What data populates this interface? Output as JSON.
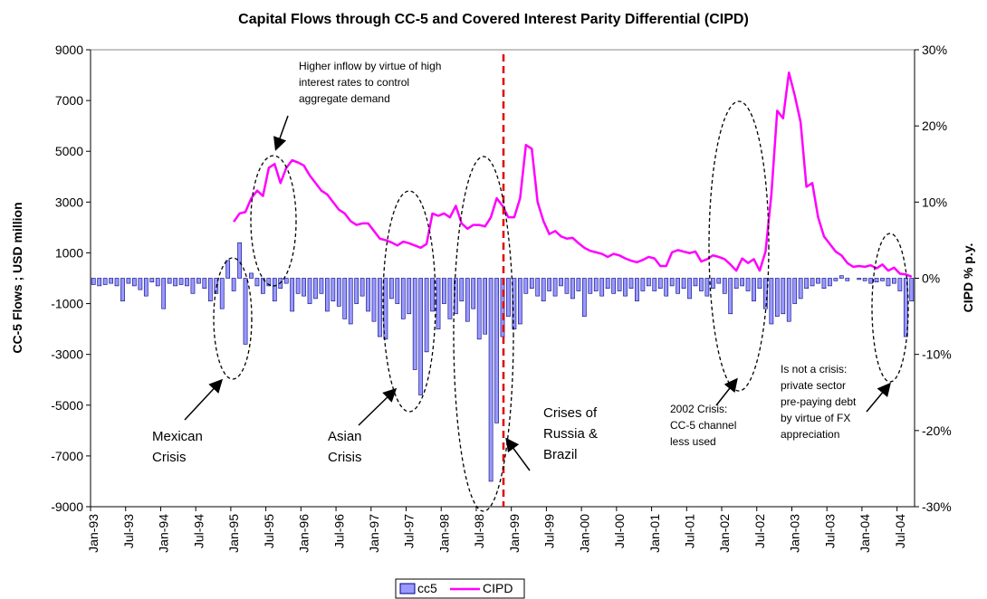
{
  "chart_data": {
    "type": "bar_line",
    "title": "Capital Flows through CC-5 and Covered Interest Parity Differential (CIPD)",
    "y_label": "CC-5 Flows ; USD million",
    "y2_label": "CIPD % p.y.",
    "categories": [
      "Jan-93",
      null,
      null,
      null,
      null,
      null,
      "Jul-93",
      null,
      null,
      null,
      null,
      null,
      "Jan-94",
      null,
      null,
      null,
      null,
      null,
      "Jul-94",
      null,
      null,
      null,
      null,
      null,
      "Jan-95",
      null,
      null,
      null,
      null,
      null,
      "Jul-95",
      null,
      null,
      null,
      null,
      null,
      "Jan-96",
      null,
      null,
      null,
      null,
      null,
      "Jul-96",
      null,
      null,
      null,
      null,
      null,
      "Jan-97",
      null,
      null,
      null,
      null,
      null,
      "Jul-97",
      null,
      null,
      null,
      null,
      null,
      "Jan-98",
      null,
      null,
      null,
      null,
      null,
      "Jul-98",
      null,
      null,
      null,
      null,
      null,
      "Jan-99",
      null,
      null,
      null,
      null,
      null,
      "Jul-99",
      null,
      null,
      null,
      null,
      null,
      "Jan-00",
      null,
      null,
      null,
      null,
      null,
      "Jul-00",
      null,
      null,
      null,
      null,
      null,
      "Jan-01",
      null,
      null,
      null,
      null,
      null,
      "Jul-01",
      null,
      null,
      null,
      null,
      null,
      "Jan-02",
      null,
      null,
      null,
      null,
      null,
      "Jul-02",
      null,
      null,
      null,
      null,
      null,
      "Jan-03",
      null,
      null,
      null,
      null,
      null,
      "Jul-03",
      null,
      null,
      null,
      null,
      null,
      "Jan-04",
      null,
      null,
      null,
      null,
      null,
      "Jul-04",
      null,
      null
    ],
    "series": [
      {
        "name": "cc5",
        "color": "#9999ff",
        "values": [
          -250,
          -300,
          -250,
          -200,
          -300,
          -900,
          -200,
          -300,
          -450,
          -700,
          -150,
          -300,
          -1200,
          -200,
          -300,
          -250,
          -300,
          -600,
          -200,
          -400,
          -900,
          -600,
          -1200,
          700,
          -500,
          1400,
          -2600,
          200,
          -300,
          -600,
          -300,
          -900,
          -400,
          -200,
          -1300,
          -600,
          -700,
          -1000,
          -800,
          -600,
          -1300,
          -900,
          -1100,
          -1600,
          -1800,
          -1000,
          -700,
          -1300,
          -1700,
          -2300,
          -2400,
          -800,
          -1000,
          -1600,
          -1400,
          -3600,
          -4600,
          -2900,
          -1300,
          -2000,
          -1000,
          -1600,
          -1400,
          -900,
          -1700,
          -1200,
          -2400,
          -2200,
          -8000,
          -5700,
          -2300,
          -1500,
          -2000,
          -1800,
          -600,
          -400,
          -700,
          -900,
          -500,
          -700,
          -300,
          -600,
          -800,
          -500,
          -1500,
          -600,
          -500,
          -700,
          -400,
          -600,
          -500,
          -700,
          -400,
          -900,
          -500,
          -300,
          -500,
          -400,
          -700,
          -300,
          -600,
          -400,
          -800,
          -300,
          -500,
          -700,
          -400,
          -200,
          -600,
          -1400,
          -400,
          -300,
          -500,
          -900,
          -400,
          -1200,
          -1800,
          -1500,
          -1400,
          -1700,
          -1000,
          -800,
          -400,
          -300,
          -200,
          -400,
          -300,
          -100,
          100,
          -100,
          0,
          -50,
          -100,
          -200,
          -150,
          -100,
          -300,
          -200,
          -500,
          -2300,
          -900
        ]
      },
      {
        "name": "CIPD",
        "color": "#ff00ff",
        "axis": "y2",
        "values": [
          null,
          null,
          null,
          null,
          null,
          null,
          null,
          null,
          null,
          null,
          null,
          null,
          null,
          null,
          null,
          null,
          null,
          null,
          null,
          null,
          null,
          null,
          null,
          null,
          7.4,
          8.5,
          8.7,
          10.5,
          11.5,
          10.8,
          14.5,
          15,
          12.5,
          14.5,
          15.5,
          15.2,
          14.8,
          13.5,
          12.5,
          11.5,
          11,
          10,
          9,
          8.5,
          7.5,
          7,
          7.2,
          7.2,
          6.2,
          5.2,
          5,
          4.7,
          4.3,
          4.8,
          4.6,
          4.3,
          4,
          4.5,
          8.5,
          8.2,
          8.5,
          8,
          9.5,
          7.2,
          6.5,
          7,
          7,
          6.8,
          8,
          10.5,
          9.5,
          8,
          8,
          10.5,
          17.5,
          17,
          10,
          7.5,
          5.8,
          6.2,
          5.5,
          5.2,
          5.3,
          4.6,
          4,
          3.6,
          3.4,
          3.2,
          2.8,
          3.2,
          3,
          2.6,
          2.3,
          2.1,
          2.4,
          2.8,
          2.6,
          1.6,
          1.6,
          3.4,
          3.7,
          3.5,
          3.3,
          3.5,
          2.2,
          2.5,
          3,
          2.8,
          2.5,
          1.8,
          1,
          2.6,
          2,
          2.5,
          1,
          3.5,
          11,
          22,
          21,
          27,
          24,
          20.5,
          12,
          12.5,
          8,
          5.5,
          4.5,
          3.5,
          3,
          2,
          1.5,
          1.6,
          1.5,
          1.7,
          1.3,
          1.8,
          1,
          1.4,
          0.6,
          0.5,
          0.2
        ]
      }
    ],
    "ylim": [
      -9000,
      9000
    ],
    "yticks": [
      -9000,
      -7000,
      -5000,
      -3000,
      -1000,
      1000,
      3000,
      5000,
      7000,
      9000
    ],
    "y2lim": [
      -30,
      30
    ],
    "y2ticks": [
      {
        "value": -30,
        "label": "-30%"
      },
      {
        "value": -20,
        "label": "-20%"
      },
      {
        "value": -10,
        "label": "-10%"
      },
      {
        "value": 0,
        "label": "0%"
      },
      {
        "value": 10,
        "label": "10%"
      },
      {
        "value": 20,
        "label": "20%"
      },
      {
        "value": 30,
        "label": "30%"
      }
    ],
    "legend": "bottom",
    "annotations": [
      [
        "Higher inflow by virtue of high",
        "interest rates to control",
        "aggregate demand"
      ],
      [
        "Mexican",
        "Crisis"
      ],
      [
        "Asian",
        "Crisis"
      ],
      [
        "Crises of",
        "Russia &",
        "Brazil"
      ],
      [
        "2002 Crisis:",
        "CC-5 channel",
        "less used"
      ],
      [
        "Is not a crisis:",
        "private sector",
        "pre-paying debt",
        "by virtue of FX",
        "appreciation"
      ]
    ]
  }
}
